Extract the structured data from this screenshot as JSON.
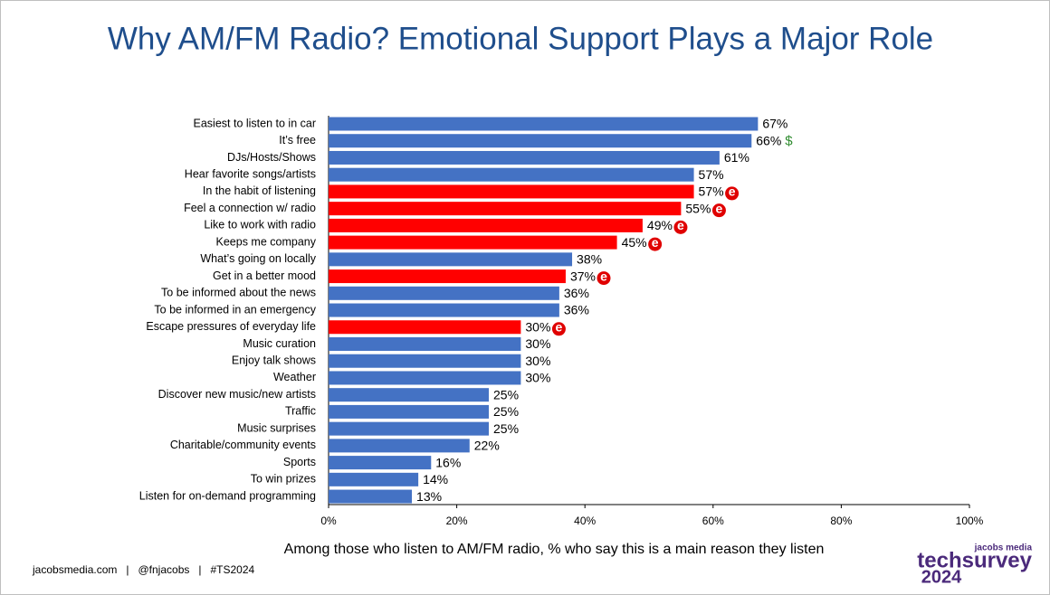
{
  "chart_data": {
    "type": "hbar",
    "title": "Why AM/FM Radio? Emotional Support Plays a Major Role",
    "xlabel": "Among those who listen to AM/FM radio, % who say this is a main reason they listen",
    "categories": [
      "Easiest to listen to in car",
      "It’s free",
      "DJs/Hosts/Shows",
      "Hear favorite songs/artists",
      "In the habit of listening",
      "Feel a connection w/ radio",
      "Like to work with radio",
      "Keeps me company",
      "What’s going on locally",
      "Get in a better mood",
      "To be informed about the news",
      "To be informed in an emergency",
      "Escape pressures of everyday life",
      "Music curation",
      "Enjoy talk shows",
      "Weather",
      "Discover new music/new artists",
      "Traffic",
      "Music surprises",
      "Charitable/community events",
      "Sports",
      "To win prizes",
      "Listen for on-demand programming"
    ],
    "values": [
      67,
      66,
      61,
      57,
      57,
      55,
      49,
      45,
      38,
      37,
      36,
      36,
      30,
      30,
      30,
      30,
      25,
      25,
      25,
      22,
      16,
      14,
      13
    ],
    "value_labels": [
      "67%",
      "66%",
      "61%",
      "57%",
      "57%",
      "55%",
      "49%",
      "45%",
      "38%",
      "37%",
      "36%",
      "36%",
      "30%",
      "30%",
      "30%",
      "30%",
      "25%",
      "25%",
      "25%",
      "22%",
      "16%",
      "14%",
      "13%"
    ],
    "colors": [
      "#4472c4",
      "#4472c4",
      "#4472c4",
      "#4472c4",
      "#ff0000",
      "#ff0000",
      "#ff0000",
      "#ff0000",
      "#4472c4",
      "#ff0000",
      "#4472c4",
      "#4472c4",
      "#ff0000",
      "#4472c4",
      "#4472c4",
      "#4472c4",
      "#4472c4",
      "#4472c4",
      "#4472c4",
      "#4472c4",
      "#4472c4",
      "#4472c4",
      "#4472c4"
    ],
    "icons": [
      null,
      "$",
      null,
      null,
      "e",
      "e",
      "e",
      "e",
      null,
      "e",
      null,
      null,
      "e",
      null,
      null,
      null,
      null,
      null,
      null,
      null,
      null,
      null,
      null
    ],
    "xlim": [
      0,
      100
    ],
    "xticks": [
      {
        "value": 0,
        "label": "0%"
      },
      {
        "value": 20,
        "label": "20%"
      },
      {
        "value": 40,
        "label": "40%"
      },
      {
        "value": 60,
        "label": "60%"
      },
      {
        "value": 80,
        "label": "80%"
      },
      {
        "value": 100,
        "label": "100%"
      }
    ],
    "grid": false
  },
  "footer": "jacobsmedia.com   |   @fnjacobs   |   #TS2024",
  "logo": {
    "brand": "jacobs media",
    "name": "techsurvey",
    "year": "2024"
  }
}
